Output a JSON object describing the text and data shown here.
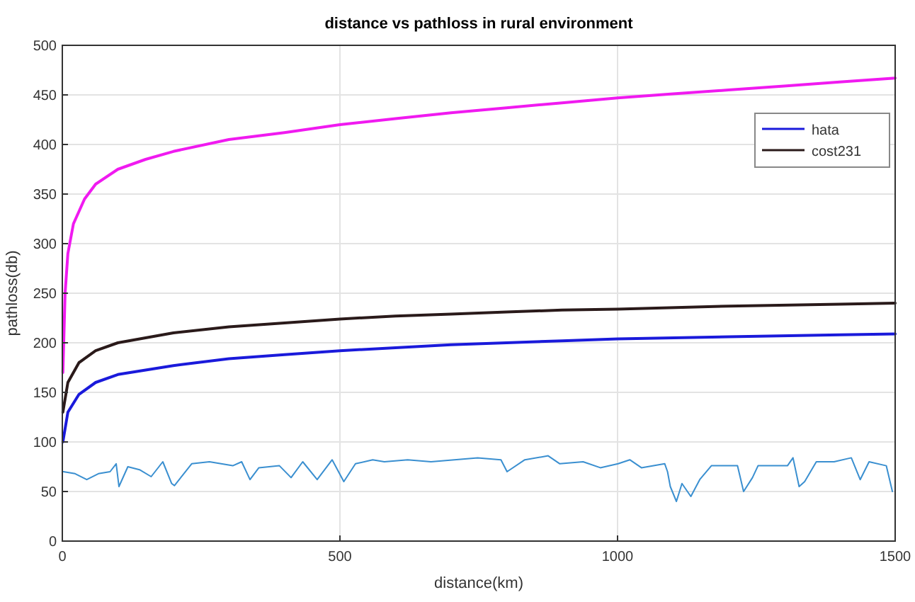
{
  "chart_data": {
    "type": "line",
    "title": "distance vs pathloss in rural environment",
    "xlabel": "distance(km)",
    "ylabel": "pathloss(db)",
    "xlim": [
      0,
      1500
    ],
    "ylim": [
      0,
      500
    ],
    "xticks": [
      0,
      500,
      1000,
      1500
    ],
    "yticks": [
      0,
      50,
      100,
      150,
      200,
      250,
      300,
      350,
      400,
      450,
      500
    ],
    "grid": true,
    "legend": "top right",
    "series": [
      {
        "name": "hata",
        "color": "#1a1adb",
        "x": [
          1,
          10,
          30,
          60,
          100,
          200,
          300,
          400,
          500,
          600,
          700,
          800,
          900,
          1000,
          1200,
          1400,
          1500
        ],
        "values": [
          100,
          130,
          148,
          160,
          168,
          177,
          184,
          188,
          192,
          195,
          198,
          200,
          202,
          204,
          206,
          208,
          209
        ]
      },
      {
        "name": "cost231",
        "color": "#2a1a1a",
        "x": [
          1,
          10,
          30,
          60,
          100,
          200,
          300,
          400,
          500,
          600,
          700,
          800,
          900,
          1000,
          1200,
          1400,
          1500
        ],
        "values": [
          130,
          160,
          180,
          192,
          200,
          210,
          216,
          220,
          224,
          227,
          229,
          231,
          233,
          234,
          237,
          239,
          240
        ]
      },
      {
        "color": "#f01af0",
        "x": [
          1,
          5,
          10,
          20,
          40,
          60,
          100,
          150,
          200,
          300,
          400,
          500,
          600,
          700,
          800,
          900,
          1000,
          1100,
          1200,
          1300,
          1400,
          1500
        ],
        "values": [
          170,
          250,
          290,
          320,
          345,
          360,
          375,
          385,
          393,
          405,
          412,
          420,
          426,
          432,
          437,
          442,
          447,
          451,
          455,
          459,
          463,
          467
        ]
      },
      {
        "color": "#3a8fd0",
        "x": [
          2,
          23,
          44,
          65,
          86,
          97,
          102,
          118,
          139,
          160,
          181,
          197,
          202,
          233,
          265,
          307,
          323,
          338,
          354,
          391,
          412,
          433,
          459,
          486,
          507,
          528,
          559,
          580,
          622,
          664,
          706,
          748,
          790,
          801,
          833,
          875,
          896,
          938,
          969,
          1001,
          1022,
          1043,
          1085,
          1090,
          1095,
          1106,
          1116,
          1132,
          1148,
          1169,
          1216,
          1227,
          1243,
          1253,
          1306,
          1316,
          1327,
          1337,
          1358,
          1390,
          1421,
          1437,
          1453,
          1484,
          1495
        ],
        "values": [
          70,
          68,
          62,
          68,
          70,
          78,
          55,
          75,
          72,
          65,
          80,
          58,
          56,
          78,
          80,
          76,
          80,
          62,
          74,
          76,
          64,
          80,
          62,
          82,
          60,
          78,
          82,
          80,
          82,
          80,
          82,
          84,
          82,
          70,
          82,
          86,
          78,
          80,
          74,
          78,
          82,
          74,
          78,
          70,
          55,
          40,
          58,
          45,
          62,
          76,
          76,
          50,
          64,
          76,
          76,
          84,
          55,
          60,
          80,
          80,
          84,
          62,
          80,
          76,
          50
        ]
      }
    ]
  }
}
